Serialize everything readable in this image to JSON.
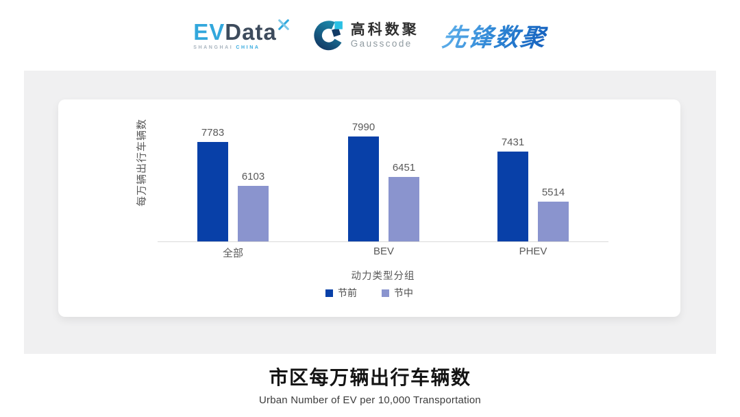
{
  "header": {
    "evdata": {
      "ev": "EV",
      "data": "Data",
      "sub_left": "SHANGHAI",
      "sub_right": "CHINA"
    },
    "gausscode": {
      "cn": "高科数聚",
      "en": "Gausscode"
    },
    "xianfeng": {
      "text": "先锋数聚"
    }
  },
  "chart_data": {
    "type": "bar",
    "title": "市区每万辆出行车辆数",
    "subtitle": "Urban Number of EV per 10,000 Transportation",
    "categories": [
      "全部",
      "BEV",
      "PHEV"
    ],
    "series": [
      {
        "name": "节前",
        "color": "#0840A8",
        "values": [
          7783,
          7990,
          7431
        ]
      },
      {
        "name": "节中",
        "color": "#8A94CE",
        "values": [
          6103,
          6451,
          5514
        ]
      }
    ],
    "xlabel": "动力类型分组",
    "ylabel": "每万辆出行车辆数",
    "axis": {
      "y_baseline_estimated": 3980,
      "y_max_estimated": 8400,
      "y_ticks_visible": false
    },
    "grid": false,
    "legend_position": "bottom",
    "data_labels_visible": true
  },
  "colors": {
    "series_pre_festival": "#0840A8",
    "series_during_festival": "#8A94CE",
    "panel_background": "#F0F0F1",
    "card_background": "#FFFFFF",
    "axis_line": "#D9D9D9",
    "label_text": "#595959",
    "evdata_cyan": "#32A7DC",
    "evdata_dark": "#3D4B5C",
    "gausscode_navy": "#123B66",
    "gausscode_cyan": "#2BC0E4",
    "xianfeng_blue": "#2E86D5"
  }
}
